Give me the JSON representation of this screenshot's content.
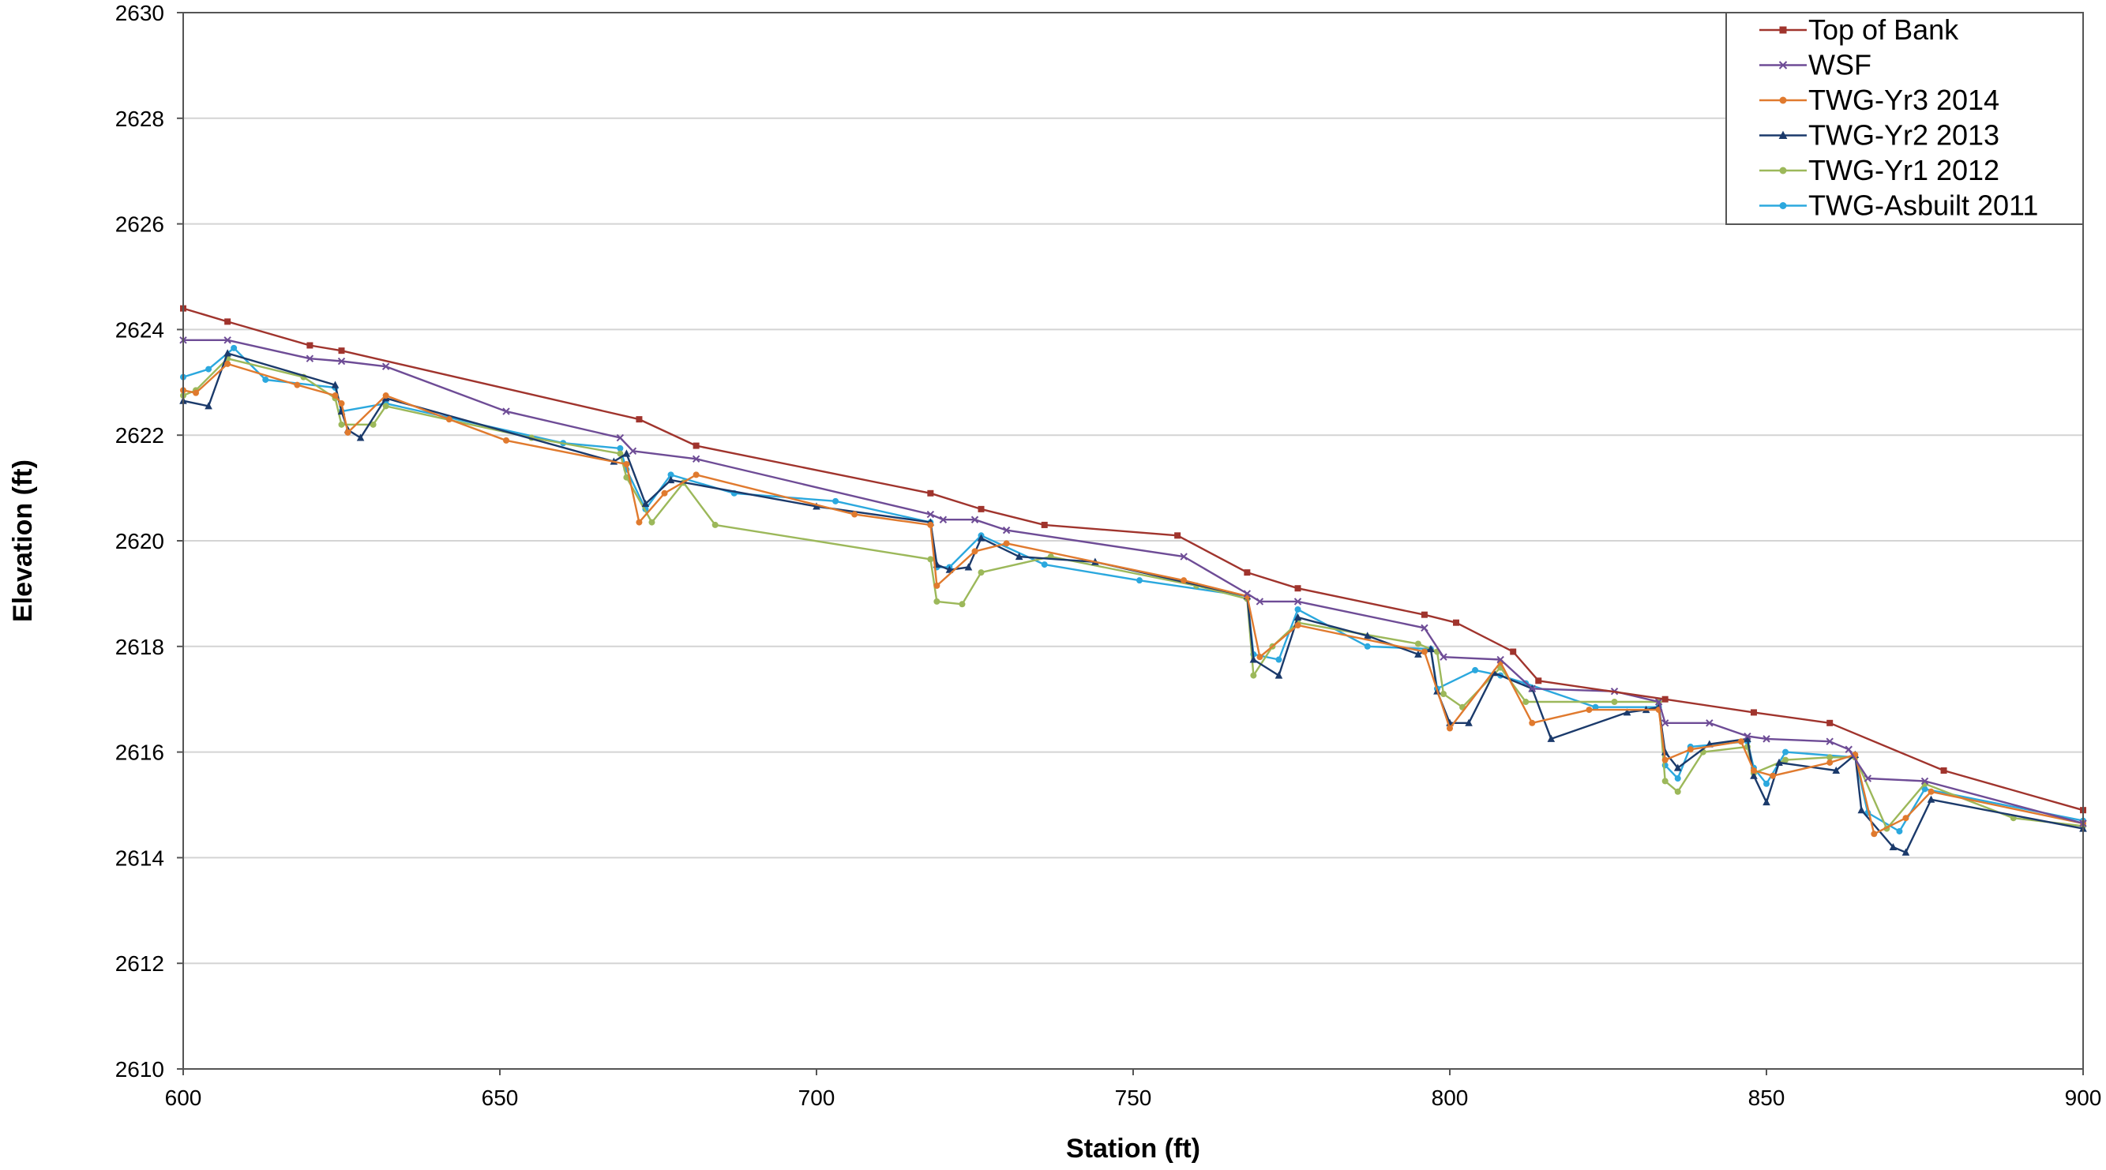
{
  "chart_data": {
    "type": "line",
    "title": "",
    "xlabel": "Station (ft)",
    "ylabel": "Elevation (ft)",
    "xlim": [
      600,
      900
    ],
    "ylim": [
      2610,
      2630
    ],
    "xticks": [
      600,
      650,
      700,
      750,
      800,
      850,
      900
    ],
    "yticks": [
      2610,
      2612,
      2614,
      2616,
      2618,
      2620,
      2622,
      2624,
      2626,
      2628,
      2630
    ],
    "grid": "horizontal",
    "legend_position": "top-right",
    "series": [
      {
        "name": "Top of Bank",
        "color": "#A0342D",
        "marker": "square",
        "points": [
          [
            600,
            2624.4
          ],
          [
            607,
            2624.15
          ],
          [
            620,
            2623.7
          ],
          [
            625,
            2623.6
          ],
          [
            672,
            2622.3
          ],
          [
            681,
            2621.8
          ],
          [
            718,
            2620.9
          ],
          [
            726,
            2620.6
          ],
          [
            736,
            2620.3
          ],
          [
            757,
            2620.1
          ],
          [
            768,
            2619.4
          ],
          [
            776,
            2619.1
          ],
          [
            796,
            2618.6
          ],
          [
            801,
            2618.45
          ],
          [
            810,
            2617.9
          ],
          [
            814,
            2617.35
          ],
          [
            834,
            2617.0
          ],
          [
            848,
            2616.75
          ],
          [
            860,
            2616.55
          ],
          [
            878,
            2615.65
          ],
          [
            900,
            2614.9
          ]
        ]
      },
      {
        "name": "WSF",
        "color": "#6E4C96",
        "marker": "x",
        "points": [
          [
            600,
            2623.8
          ],
          [
            607,
            2623.8
          ],
          [
            620,
            2623.45
          ],
          [
            625,
            2623.4
          ],
          [
            632,
            2623.3
          ],
          [
            651,
            2622.45
          ],
          [
            669,
            2621.95
          ],
          [
            671,
            2621.7
          ],
          [
            681,
            2621.55
          ],
          [
            718,
            2620.5
          ],
          [
            720,
            2620.4
          ],
          [
            725,
            2620.4
          ],
          [
            730,
            2620.2
          ],
          [
            758,
            2619.7
          ],
          [
            768,
            2619.0
          ],
          [
            770,
            2618.85
          ],
          [
            776,
            2618.85
          ],
          [
            796,
            2618.35
          ],
          [
            799,
            2617.8
          ],
          [
            808,
            2617.75
          ],
          [
            813,
            2617.2
          ],
          [
            826,
            2617.15
          ],
          [
            833,
            2616.95
          ],
          [
            834,
            2616.55
          ],
          [
            841,
            2616.55
          ],
          [
            847,
            2616.3
          ],
          [
            850,
            2616.25
          ],
          [
            860,
            2616.2
          ],
          [
            863,
            2616.05
          ],
          [
            866,
            2615.5
          ],
          [
            875,
            2615.45
          ],
          [
            900,
            2614.65
          ]
        ]
      },
      {
        "name": "TWG-Yr3 2014",
        "color": "#E07A2E",
        "marker": "circle",
        "points": [
          [
            600,
            2622.85
          ],
          [
            602,
            2622.8
          ],
          [
            607,
            2623.35
          ],
          [
            618,
            2622.95
          ],
          [
            624,
            2622.75
          ],
          [
            625,
            2622.6
          ],
          [
            626,
            2622.05
          ],
          [
            632,
            2622.75
          ],
          [
            642,
            2622.3
          ],
          [
            651,
            2621.9
          ],
          [
            670,
            2621.45
          ],
          [
            672,
            2620.35
          ],
          [
            676,
            2620.9
          ],
          [
            681,
            2621.25
          ],
          [
            706,
            2620.5
          ],
          [
            718,
            2620.3
          ],
          [
            719,
            2619.15
          ],
          [
            725,
            2619.8
          ],
          [
            730,
            2619.95
          ],
          [
            758,
            2619.25
          ],
          [
            768,
            2618.95
          ],
          [
            770,
            2617.8
          ],
          [
            776,
            2618.4
          ],
          [
            796,
            2617.9
          ],
          [
            800,
            2616.45
          ],
          [
            808,
            2617.7
          ],
          [
            813,
            2616.55
          ],
          [
            822,
            2616.8
          ],
          [
            833,
            2616.8
          ],
          [
            834,
            2615.85
          ],
          [
            838,
            2616.05
          ],
          [
            846,
            2616.2
          ],
          [
            848,
            2615.65
          ],
          [
            851,
            2615.55
          ],
          [
            860,
            2615.8
          ],
          [
            864,
            2615.95
          ],
          [
            867,
            2614.45
          ],
          [
            872,
            2614.75
          ],
          [
            876,
            2615.25
          ],
          [
            900,
            2614.65
          ]
        ]
      },
      {
        "name": "TWG-Yr2 2013",
        "color": "#1B3A6B",
        "marker": "triangle",
        "points": [
          [
            600,
            2622.65
          ],
          [
            604,
            2622.55
          ],
          [
            607,
            2623.55
          ],
          [
            624,
            2622.95
          ],
          [
            625,
            2622.45
          ],
          [
            626,
            2622.1
          ],
          [
            628,
            2621.95
          ],
          [
            632,
            2622.7
          ],
          [
            668,
            2621.5
          ],
          [
            670,
            2621.65
          ],
          [
            673,
            2620.7
          ],
          [
            677,
            2621.15
          ],
          [
            700,
            2620.65
          ],
          [
            718,
            2620.35
          ],
          [
            719,
            2619.55
          ],
          [
            721,
            2619.45
          ],
          [
            724,
            2619.5
          ],
          [
            726,
            2620.05
          ],
          [
            732,
            2619.7
          ],
          [
            744,
            2619.6
          ],
          [
            768,
            2618.95
          ],
          [
            769,
            2617.75
          ],
          [
            773,
            2617.45
          ],
          [
            776,
            2618.55
          ],
          [
            787,
            2618.2
          ],
          [
            795,
            2617.85
          ],
          [
            797,
            2617.95
          ],
          [
            798,
            2617.15
          ],
          [
            800,
            2616.55
          ],
          [
            803,
            2616.55
          ],
          [
            807,
            2617.5
          ],
          [
            813,
            2617.2
          ],
          [
            816,
            2616.25
          ],
          [
            828,
            2616.75
          ],
          [
            831,
            2616.8
          ],
          [
            833,
            2616.85
          ],
          [
            834,
            2616.0
          ],
          [
            836,
            2615.7
          ],
          [
            841,
            2616.15
          ],
          [
            847,
            2616.25
          ],
          [
            848,
            2615.55
          ],
          [
            850,
            2615.05
          ],
          [
            852,
            2615.8
          ],
          [
            861,
            2615.65
          ],
          [
            864,
            2615.95
          ],
          [
            865,
            2614.9
          ],
          [
            870,
            2614.2
          ],
          [
            872,
            2614.1
          ],
          [
            876,
            2615.1
          ],
          [
            900,
            2614.55
          ]
        ]
      },
      {
        "name": "TWG-Yr1 2012",
        "color": "#9CB85A",
        "marker": "circle",
        "points": [
          [
            600,
            2622.75
          ],
          [
            602,
            2622.85
          ],
          [
            607,
            2623.45
          ],
          [
            619,
            2623.1
          ],
          [
            624,
            2622.7
          ],
          [
            625,
            2622.2
          ],
          [
            630,
            2622.2
          ],
          [
            632,
            2622.55
          ],
          [
            655,
            2621.95
          ],
          [
            669,
            2621.65
          ],
          [
            670,
            2621.2
          ],
          [
            674,
            2620.35
          ],
          [
            679,
            2621.1
          ],
          [
            684,
            2620.3
          ],
          [
            718,
            2619.65
          ],
          [
            719,
            2618.85
          ],
          [
            723,
            2618.8
          ],
          [
            726,
            2619.4
          ],
          [
            737,
            2619.7
          ],
          [
            760,
            2619.15
          ],
          [
            768,
            2618.9
          ],
          [
            769,
            2617.45
          ],
          [
            772,
            2618.0
          ],
          [
            776,
            2618.45
          ],
          [
            795,
            2618.05
          ],
          [
            798,
            2617.9
          ],
          [
            799,
            2617.1
          ],
          [
            802,
            2616.85
          ],
          [
            808,
            2617.6
          ],
          [
            812,
            2616.95
          ],
          [
            826,
            2616.95
          ],
          [
            833,
            2616.95
          ],
          [
            834,
            2615.45
          ],
          [
            836,
            2615.25
          ],
          [
            840,
            2616.0
          ],
          [
            847,
            2616.1
          ],
          [
            848,
            2615.6
          ],
          [
            853,
            2615.85
          ],
          [
            860,
            2615.9
          ],
          [
            864,
            2615.9
          ],
          [
            869,
            2614.55
          ],
          [
            875,
            2615.4
          ],
          [
            889,
            2614.75
          ],
          [
            900,
            2614.6
          ]
        ]
      },
      {
        "name": "TWG-Asbuilt 2011",
        "color": "#2BA8DE",
        "marker": "circle",
        "points": [
          [
            600,
            2623.1
          ],
          [
            604,
            2623.25
          ],
          [
            608,
            2623.65
          ],
          [
            613,
            2623.05
          ],
          [
            624,
            2622.9
          ],
          [
            625,
            2622.45
          ],
          [
            632,
            2622.6
          ],
          [
            660,
            2621.85
          ],
          [
            669,
            2621.75
          ],
          [
            670,
            2621.35
          ],
          [
            673,
            2620.6
          ],
          [
            677,
            2621.25
          ],
          [
            687,
            2620.9
          ],
          [
            703,
            2620.75
          ],
          [
            718,
            2620.35
          ],
          [
            719,
            2619.5
          ],
          [
            721,
            2619.5
          ],
          [
            726,
            2620.1
          ],
          [
            736,
            2619.55
          ],
          [
            751,
            2619.25
          ],
          [
            768,
            2618.95
          ],
          [
            769,
            2617.85
          ],
          [
            773,
            2617.75
          ],
          [
            776,
            2618.7
          ],
          [
            787,
            2618.0
          ],
          [
            797,
            2617.95
          ],
          [
            798,
            2617.2
          ],
          [
            804,
            2617.55
          ],
          [
            808,
            2617.45
          ],
          [
            812,
            2617.3
          ],
          [
            823,
            2616.85
          ],
          [
            833,
            2616.85
          ],
          [
            834,
            2615.75
          ],
          [
            836,
            2615.5
          ],
          [
            838,
            2616.1
          ],
          [
            847,
            2616.2
          ],
          [
            848,
            2615.7
          ],
          [
            850,
            2615.4
          ],
          [
            853,
            2616.0
          ],
          [
            864,
            2615.9
          ],
          [
            866,
            2614.85
          ],
          [
            871,
            2614.5
          ],
          [
            875,
            2615.3
          ],
          [
            900,
            2614.7
          ]
        ]
      }
    ]
  }
}
